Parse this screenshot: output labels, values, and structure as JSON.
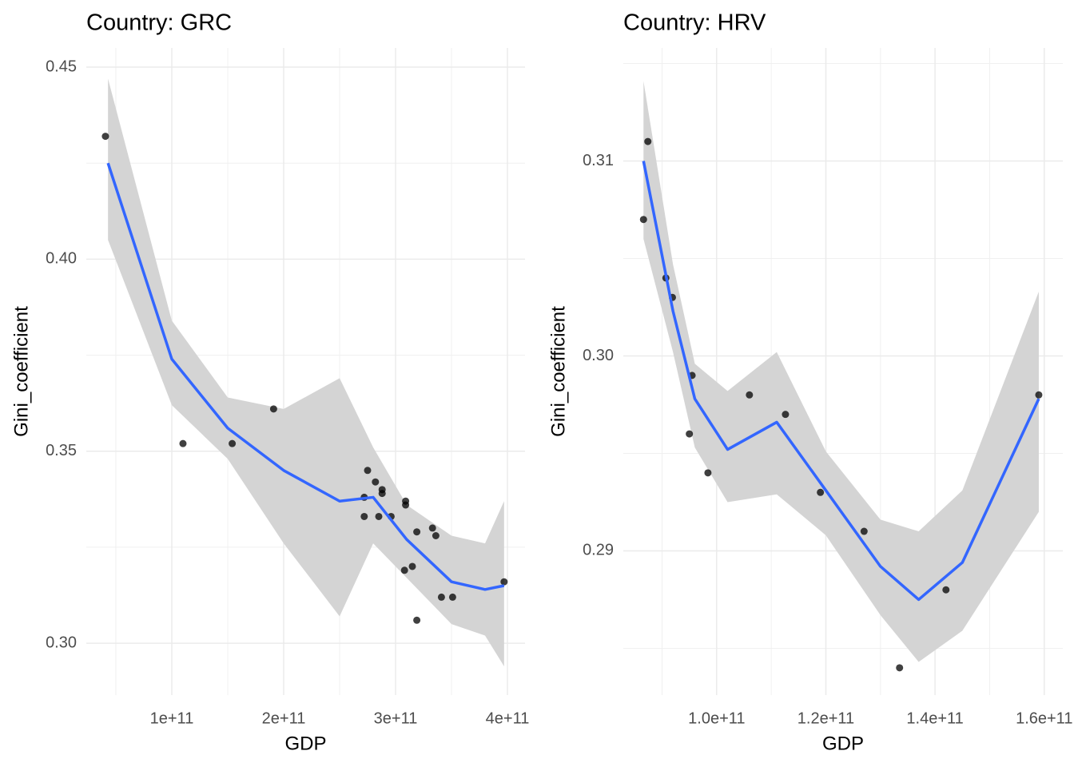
{
  "chart_data": [
    {
      "type": "scatter",
      "title": "Country: GRC",
      "x_label": "GDP",
      "y_label": "Gini_coefficient",
      "xlim": [
        23600000000,
        415700000000
      ],
      "ylim": [
        0.2865,
        0.455
      ],
      "xticks": [
        {
          "value": 100000000000,
          "label": "1e+11"
        },
        {
          "value": 200000000000,
          "label": "2e+11"
        },
        {
          "value": 300000000000,
          "label": "3e+11"
        },
        {
          "value": 400000000000,
          "label": "4e+11"
        }
      ],
      "yticks": [
        {
          "value": 0.3,
          "label": "0.30"
        },
        0.35,
        {
          "value": 0.4,
          "label": "0.40"
        },
        0.45
      ],
      "grid": true,
      "color": "#000000",
      "x": [
        40700000000,
        110000000000,
        154000000000,
        191000000000,
        275000000000,
        282000000000,
        288000000000,
        288000000000,
        272000000000,
        272000000000,
        285000000000,
        296000000000,
        309000000000,
        309000000000,
        333000000000,
        336000000000,
        319000000000,
        308000000000,
        315000000000,
        319000000000,
        341000000000,
        351000000000,
        397000000000
      ],
      "values": [
        0.432,
        0.352,
        0.352,
        0.361,
        0.345,
        0.342,
        0.34,
        0.339,
        0.338,
        0.333,
        0.333,
        0.333,
        0.337,
        0.336,
        0.33,
        0.328,
        0.329,
        0.319,
        0.32,
        0.306,
        0.312,
        0.312,
        0.316
      ],
      "smooth": {
        "color": "#3366ff",
        "band_color": "#d4d4d4",
        "x": [
          43000000000,
          100000000000,
          150000000000,
          200000000000,
          250000000000,
          280000000000,
          310000000000,
          350000000000,
          380000000000,
          397000000000
        ],
        "values": [
          0.425,
          0.374,
          0.356,
          0.345,
          0.337,
          0.338,
          0.327,
          0.316,
          0.314,
          0.315
        ],
        "lower": [
          0.405,
          0.362,
          0.348,
          0.326,
          0.307,
          0.326,
          0.317,
          0.305,
          0.302,
          0.294
        ],
        "upper": [
          0.447,
          0.384,
          0.364,
          0.361,
          0.369,
          0.351,
          0.336,
          0.328,
          0.326,
          0.337
        ]
      }
    },
    {
      "type": "scatter",
      "title": "Country: HRV",
      "x_label": "GDP",
      "y_label": "Gini_coefficient",
      "xlim": [
        82900000000,
        163400000000
      ],
      "ylim": [
        0.2826,
        0.3158
      ],
      "xticks": [
        {
          "value": 100000000000,
          "label": "1.0e+11"
        },
        {
          "value": 120000000000,
          "label": "1.2e+11"
        },
        {
          "value": 140000000000,
          "label": "1.4e+11"
        },
        {
          "value": 160000000000,
          "label": "1.6e+11"
        }
      ],
      "yticks": [
        0.29,
        {
          "value": 0.3,
          "label": "0.30"
        },
        0.31
      ],
      "grid": true,
      "color": "#000000",
      "x": [
        87400000000,
        86600000000,
        90700000000,
        91900000000,
        95500000000,
        95000000000,
        98400000000,
        106000000000,
        112600000000,
        119000000000,
        127000000000,
        133500000000,
        142000000000,
        159000000000
      ],
      "values": [
        0.311,
        0.307,
        0.304,
        0.303,
        0.299,
        0.296,
        0.294,
        0.298,
        0.297,
        0.293,
        0.291,
        0.284,
        0.288,
        0.298
      ],
      "smooth": {
        "color": "#3366ff",
        "band_color": "#d4d4d4",
        "x": [
          86600000000,
          92000000000,
          96000000000,
          102000000000,
          111000000000,
          120000000000,
          130000000000,
          137000000000,
          145000000000,
          159000000000
        ],
        "values": [
          0.31,
          0.3023,
          0.2978,
          0.2952,
          0.2966,
          0.2931,
          0.2892,
          0.2875,
          0.2894,
          0.2978
        ],
        "lower": [
          0.306,
          0.3002,
          0.2953,
          0.2925,
          0.2929,
          0.2908,
          0.2867,
          0.2843,
          0.2859,
          0.292
        ],
        "upper": [
          0.3141,
          0.3047,
          0.2996,
          0.2982,
          0.3002,
          0.2951,
          0.2916,
          0.291,
          0.2931,
          0.3033
        ]
      }
    }
  ]
}
